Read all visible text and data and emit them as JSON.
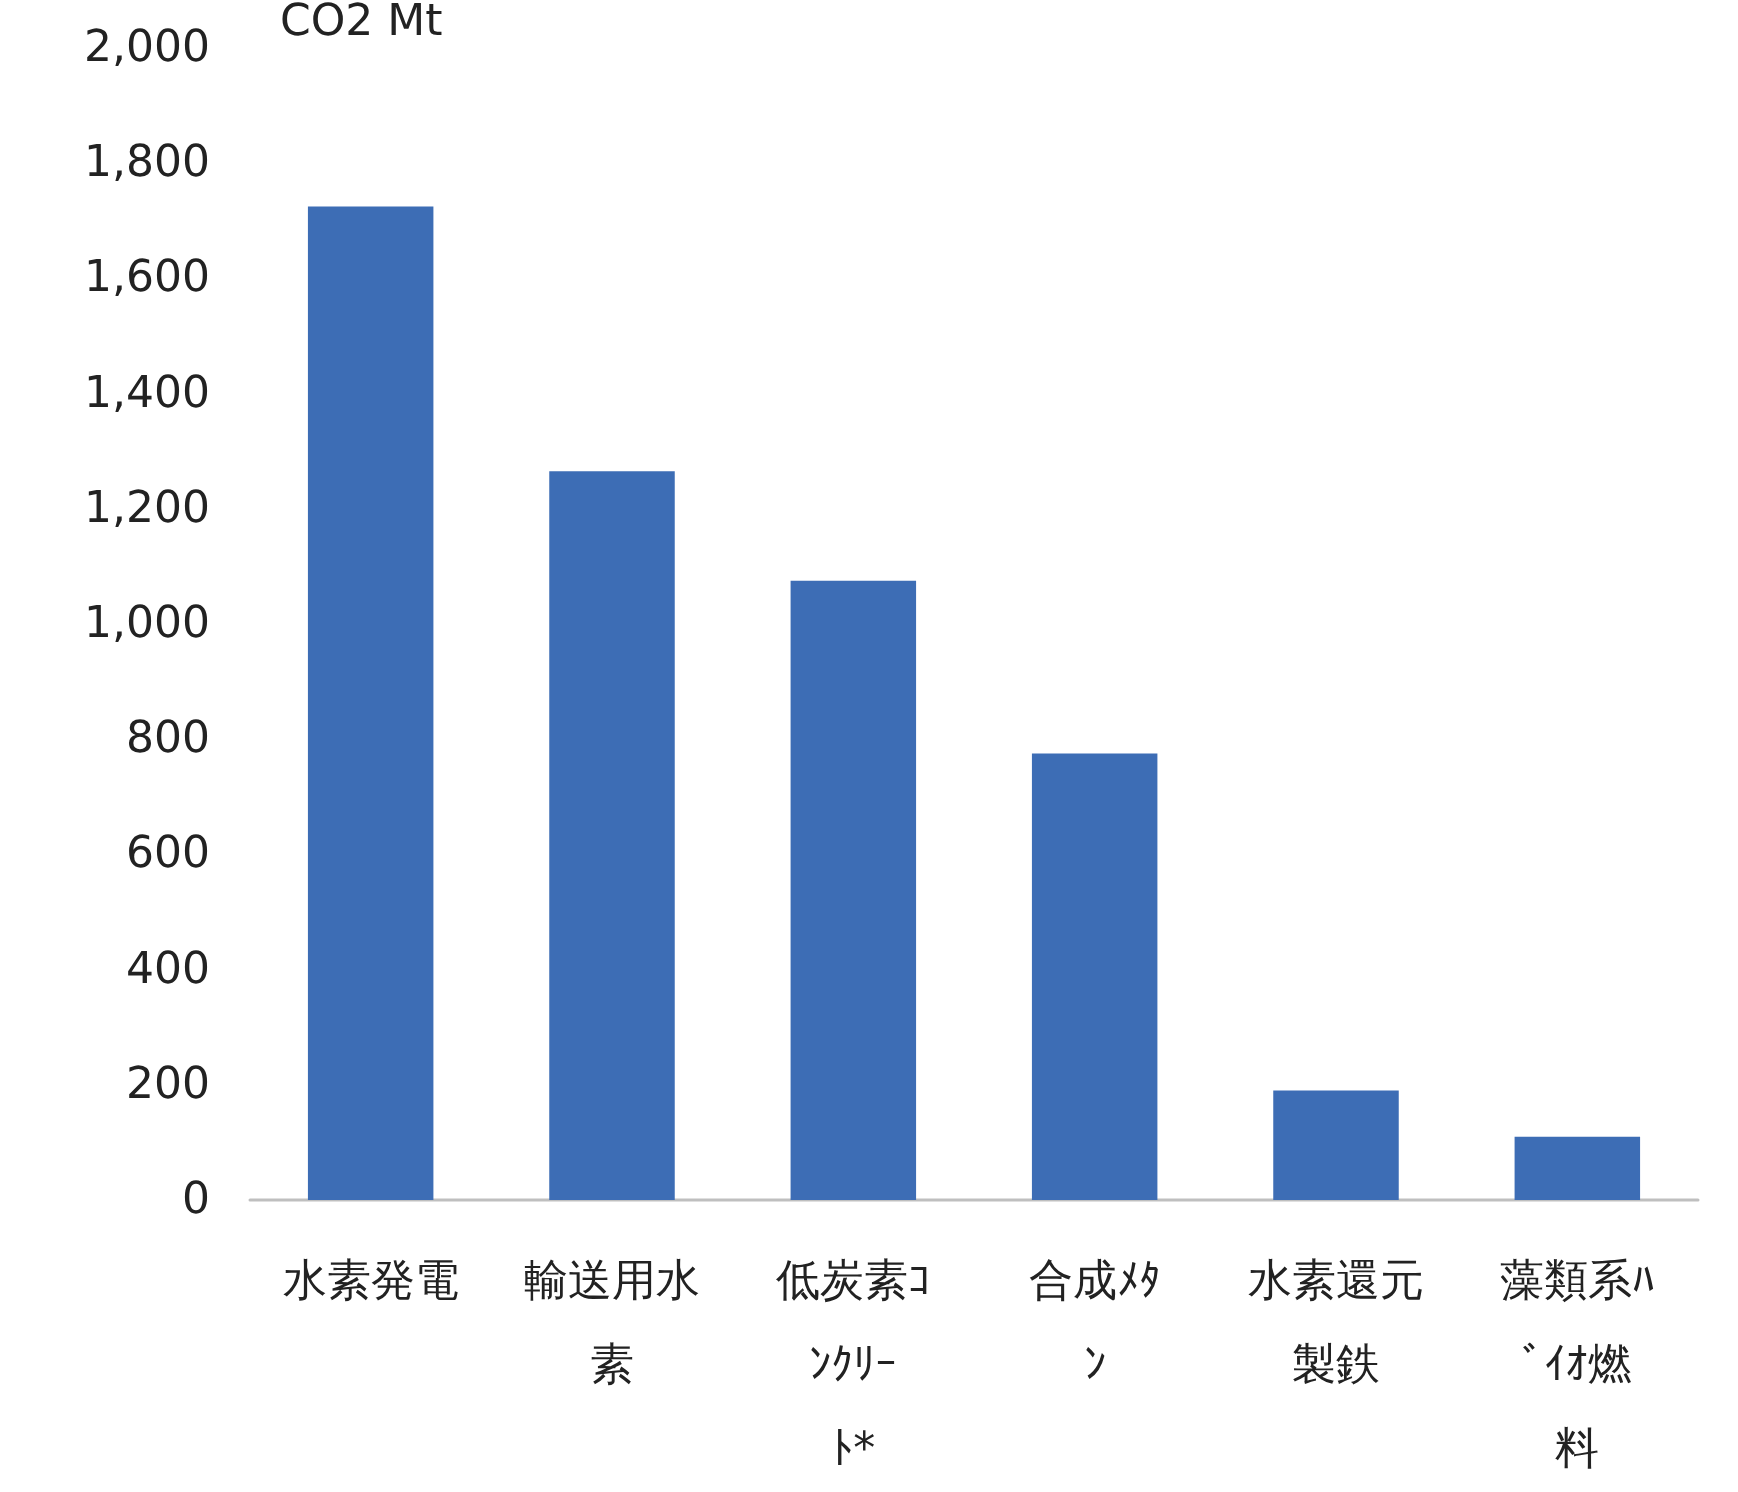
{
  "chart_data": {
    "type": "bar",
    "ylabel": "CO2 Mt",
    "categories": [
      "水素発電",
      "輸送用水素",
      "低炭素ｺﾝｸﾘｰﾄ*",
      "合成ﾒﾀﾝ",
      "水素還元製鉄",
      "藻類系ﾊﾞｲｵ燃料"
    ],
    "values": [
      1725,
      1265,
      1075,
      775,
      190,
      110
    ],
    "color": "#3d6db5",
    "ylim": [
      0,
      2000
    ],
    "yticks": [
      0,
      200,
      400,
      600,
      800,
      {
        "value": 1000,
        "label": "1,000"
      },
      {
        "value": 1200,
        "label": "1,200"
      },
      {
        "value": 1400,
        "label": "1,400"
      },
      {
        "value": 1600,
        "label": "1,600"
      },
      {
        "value": 1800,
        "label": "1,800"
      },
      {
        "value": 2000,
        "label": "2,000"
      }
    ],
    "grid": false
  }
}
